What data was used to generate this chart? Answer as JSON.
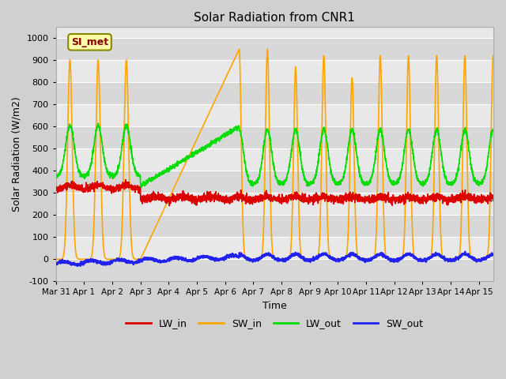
{
  "title": "Solar Radiation from CNR1",
  "xlabel": "Time",
  "ylabel": "Solar Radiation (W/m2)",
  "ylim": [
    -100,
    1050
  ],
  "xlim": [
    0,
    15.5
  ],
  "fig_bg": "#d0d0d0",
  "plot_bg": "#e8e8e8",
  "legend_label": "SI_met",
  "series": {
    "LW_in": {
      "color": "#dd0000",
      "lw": 1.2
    },
    "SW_in": {
      "color": "#ffa500",
      "lw": 1.2
    },
    "LW_out": {
      "color": "#00dd00",
      "lw": 1.2
    },
    "SW_out": {
      "color": "#2222ee",
      "lw": 1.5
    }
  },
  "xtick_labels": [
    "Mar 31",
    "Apr 1",
    "Apr 2",
    "Apr 3",
    "Apr 4",
    "Apr 5",
    "Apr 6",
    "Apr 7",
    "Apr 8",
    "Apr 9",
    "Apr 10",
    "Apr 11",
    "Apr 12",
    "Apr 13",
    "Apr 14",
    "Apr 15"
  ],
  "xtick_positions": [
    0,
    1,
    2,
    3,
    4,
    5,
    6,
    7,
    8,
    9,
    10,
    11,
    12,
    13,
    14,
    15
  ],
  "ytick_positions": [
    -100,
    0,
    100,
    200,
    300,
    400,
    500,
    600,
    700,
    800,
    900,
    1000
  ]
}
